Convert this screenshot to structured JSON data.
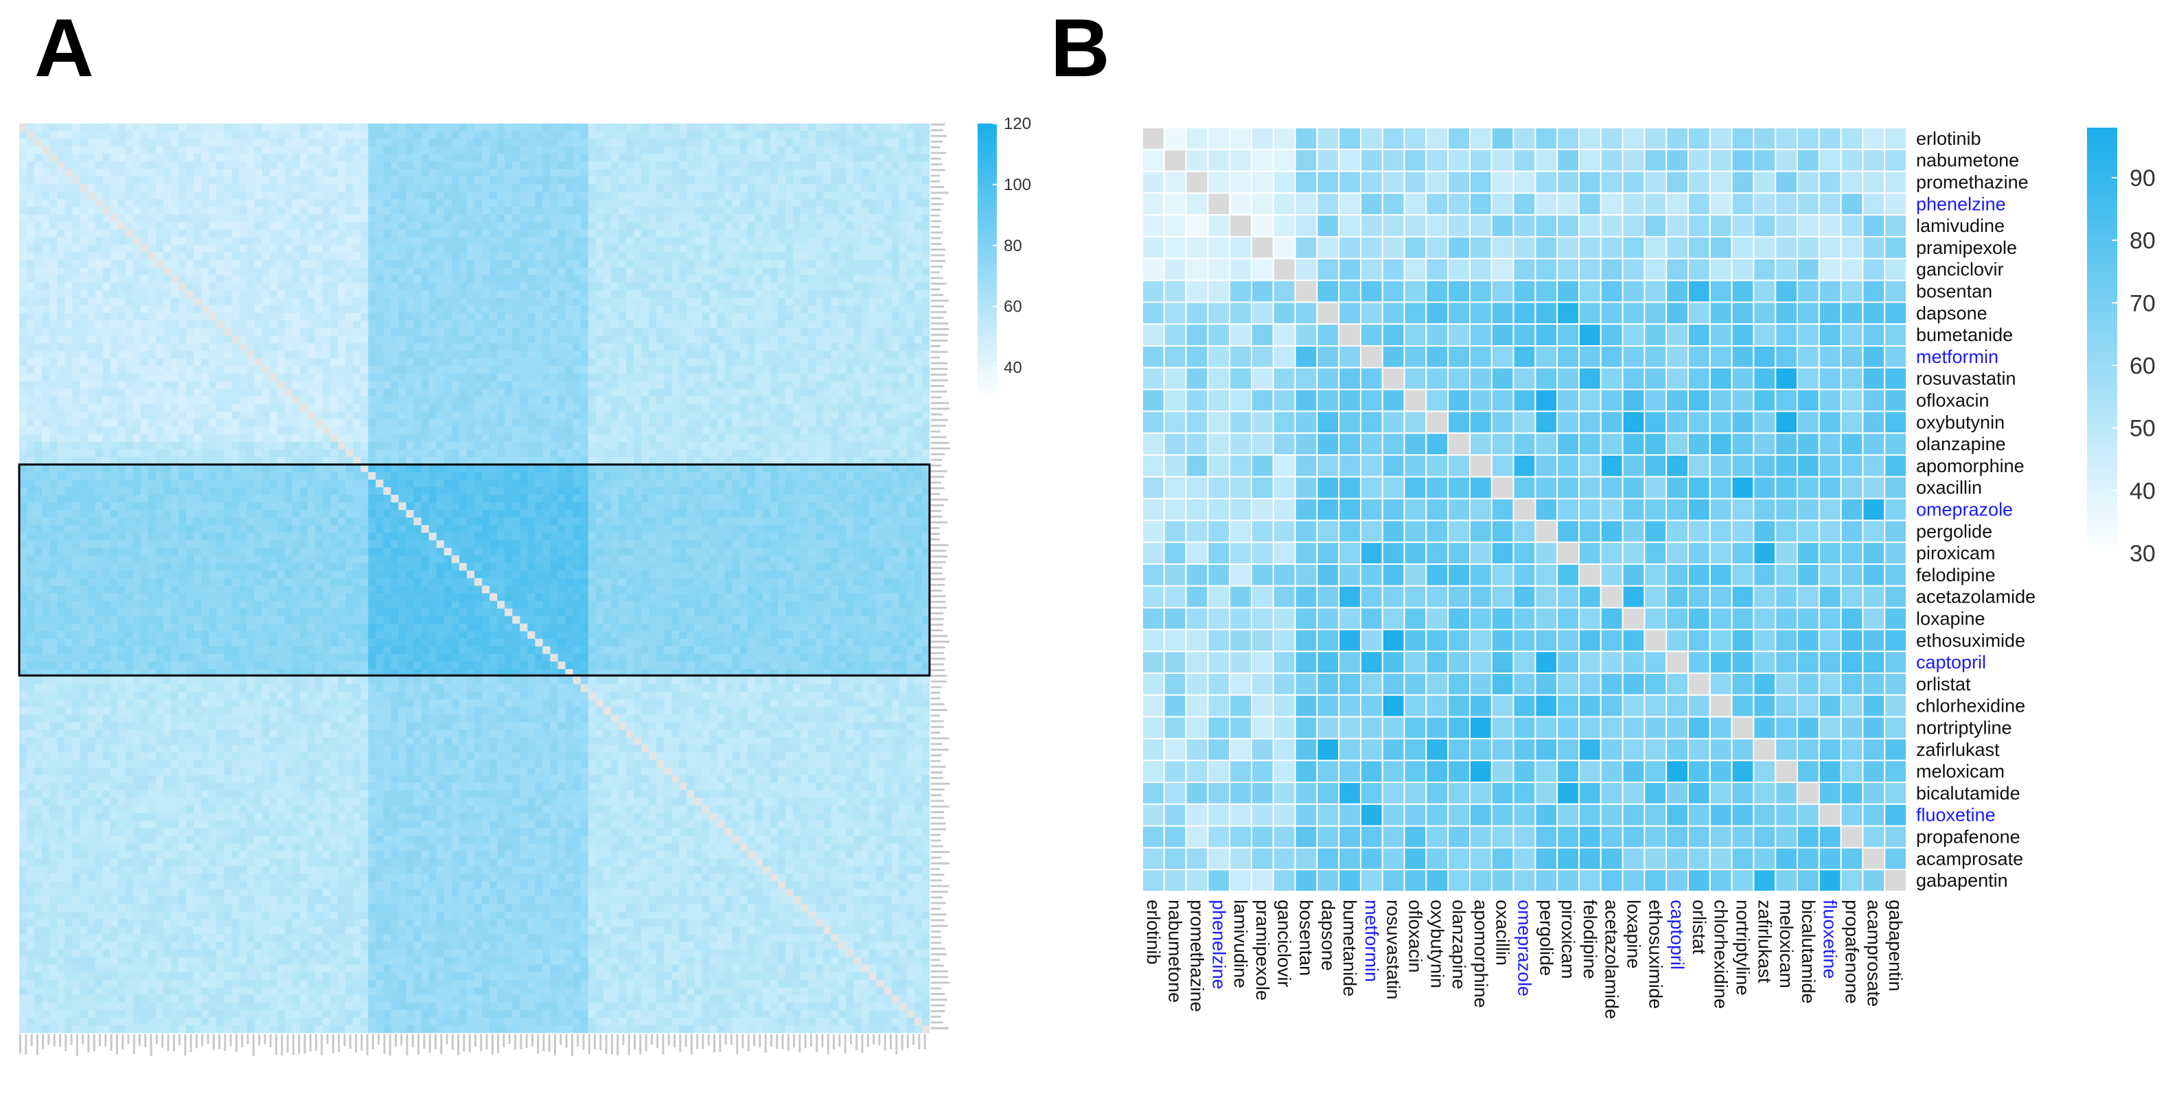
{
  "panels": {
    "a_label": "A",
    "b_label": "B"
  },
  "chart_data": [
    {
      "type": "heatmap",
      "panel": "A",
      "title": "",
      "description_values": "Large clustered similarity heatmap of all drugs; grey diagonal; a band of high values in the middle rows and columns is highlighted by a black box.",
      "color_scale": {
        "min": 30,
        "max": 120,
        "low_color": "#ffffff",
        "high_color": "#1aaeea"
      },
      "colorbar_ticks": [
        120,
        100,
        80,
        60,
        40
      ],
      "highlight_rows_fraction": [
        0.375,
        0.607
      ],
      "high_column_band_fraction": [
        0.38,
        0.62
      ],
      "row_labels_legible": false,
      "col_labels_legible": false
    },
    {
      "type": "heatmap",
      "panel": "B",
      "title": "",
      "color_scale": {
        "min": 30,
        "max": 98,
        "low_color": "#ffffff",
        "high_color": "#1aaeea"
      },
      "colorbar_ticks": [
        90,
        80,
        70,
        60,
        50,
        40,
        30
      ],
      "diagonal_color": "#d9d9d9",
      "drugs": [
        "erlotinib",
        "nabumetone",
        "promethazine",
        "phenelzine",
        "lamivudine",
        "pramipexole",
        "ganciclovir",
        "bosentan",
        "dapsone",
        "bumetanide",
        "metformin",
        "rosuvastatin",
        "ofloxacin",
        "oxybutynin",
        "olanzapine",
        "apomorphine",
        "oxacillin",
        "omeprazole",
        "pergolide",
        "piroxicam",
        "felodipine",
        "acetazolamide",
        "loxapine",
        "ethosuximide",
        "captopril",
        "orlistat",
        "chlorhexidine",
        "nortriptyline",
        "zafirlukast",
        "meloxicam",
        "bicalutamide",
        "fluoxetine",
        "propafenone",
        "acamprosate",
        "gabapentin"
      ],
      "highlighted_drugs": [
        "phenelzine",
        "metformin",
        "omeprazole",
        "captopril",
        "fluoxetine"
      ],
      "label_colors": {
        "normal": "#111111",
        "highlighted": "#1a1aff"
      },
      "matrix_note": "Approximate values; low (~35-50) for the first 7 drugs (erlotinib..ganciclovir), mid-high (~60-90) elsewhere."
    }
  ]
}
